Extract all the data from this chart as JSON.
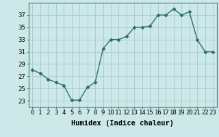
{
  "x": [
    0,
    1,
    2,
    3,
    4,
    5,
    6,
    7,
    8,
    9,
    10,
    11,
    12,
    13,
    14,
    15,
    16,
    17,
    18,
    19,
    20,
    21,
    22,
    23
  ],
  "y": [
    28,
    27.5,
    26.5,
    26,
    25.5,
    23.1,
    23.1,
    25.2,
    26,
    31.5,
    33,
    33,
    33.5,
    35,
    35,
    35.2,
    37,
    37,
    38,
    37,
    37.5,
    33,
    31,
    31
  ],
  "line_color": "#2a6e6e",
  "marker": "D",
  "markersize": 2.5,
  "bg_color": "#cce8e8",
  "grid_color": "#aacece",
  "xlabel": "Humidex (Indice chaleur)",
  "ylabel": "",
  "xlim": [
    -0.5,
    23.5
  ],
  "ylim": [
    22,
    39
  ],
  "yticks": [
    23,
    25,
    27,
    29,
    31,
    33,
    35,
    37
  ],
  "xticks": [
    0,
    1,
    2,
    3,
    4,
    5,
    6,
    7,
    8,
    9,
    10,
    11,
    12,
    13,
    14,
    15,
    16,
    17,
    18,
    19,
    20,
    21,
    22,
    23
  ],
  "xtick_labels": [
    "0",
    "1",
    "2",
    "3",
    "4",
    "5",
    "6",
    "7",
    "8",
    "9",
    "10",
    "11",
    "12",
    "13",
    "14",
    "15",
    "16",
    "17",
    "18",
    "19",
    "20",
    "21",
    "22",
    "23"
  ],
  "xlabel_fontsize": 7.5,
  "tick_fontsize": 6.5,
  "linewidth": 1.0
}
